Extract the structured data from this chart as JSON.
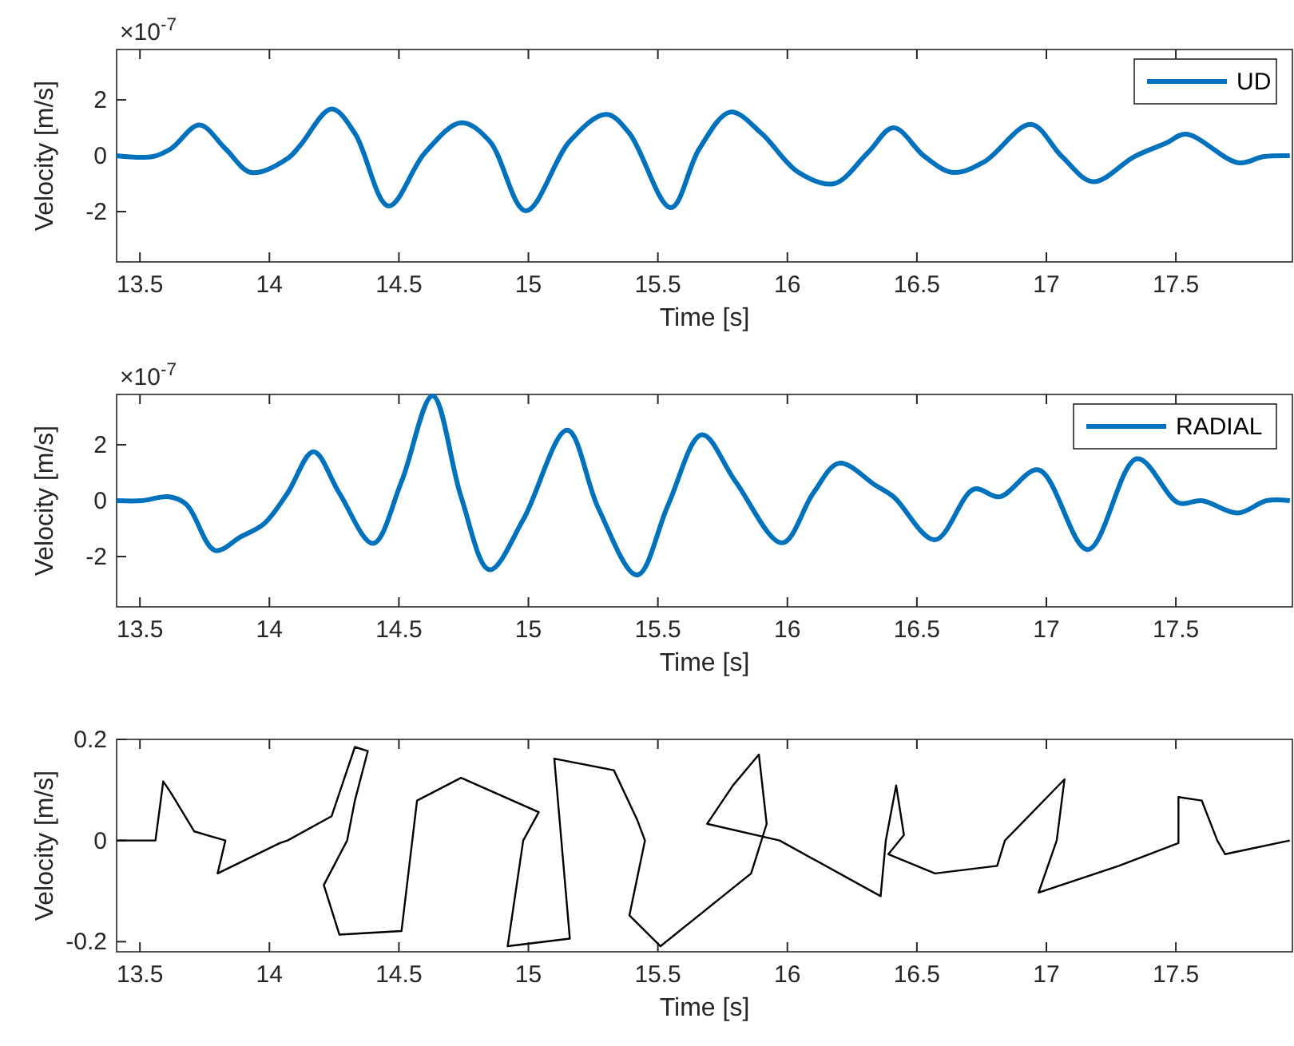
{
  "chart_data": [
    {
      "type": "line",
      "xlabel": "Time [s]",
      "ylabel": "Velocity [m/s]",
      "annotations": [
        "×10$^{-7}$"
      ],
      "legend": "top right",
      "xlim": [
        13.41,
        17.95
      ],
      "ylim": [
        -3.8,
        3.8
      ],
      "xticks": [
        13.5,
        14,
        14.5,
        15,
        15.5,
        16,
        16.5,
        17,
        17.5
      ],
      "yticks": [
        -2,
        0,
        2
      ],
      "series": [
        {
          "name": "UD",
          "color": "#0072bd",
          "x": [
            13.41,
            13.55,
            13.62,
            13.73,
            13.83,
            13.93,
            14.07,
            14.12,
            14.24,
            14.33,
            14.46,
            14.6,
            14.74,
            14.85,
            14.99,
            15.16,
            15.3,
            15.39,
            15.55,
            15.66,
            15.78,
            15.9,
            16.04,
            16.18,
            16.31,
            16.41,
            16.53,
            16.64,
            16.76,
            16.94,
            17.06,
            17.18,
            17.34,
            17.46,
            17.54,
            17.74,
            17.84,
            17.94
          ],
          "values": [
            0,
            -0.03,
            0.25,
            1.1,
            0.25,
            -0.6,
            -0.1,
            0.38,
            1.67,
            0.8,
            -1.8,
            0.1,
            1.18,
            0.52,
            -1.97,
            0.52,
            1.48,
            0.8,
            -1.86,
            0.25,
            1.56,
            0.8,
            -0.58,
            -1.0,
            0.1,
            1.0,
            -0.03,
            -0.6,
            -0.22,
            1.12,
            -0.03,
            -0.93,
            -0.03,
            0.44,
            0.77,
            -0.25,
            -0.03,
            0
          ]
        }
      ]
    },
    {
      "type": "line",
      "xlabel": "Time [s]",
      "ylabel": "Velocity [m/s]",
      "annotations": [
        "×10$^{-7}$"
      ],
      "legend": "top right",
      "xlim": [
        13.41,
        17.95
      ],
      "ylim": [
        -3.8,
        3.8
      ],
      "xticks": [
        13.5,
        14,
        14.5,
        15,
        15.5,
        16,
        16.5,
        17,
        17.5
      ],
      "yticks": [
        -2,
        0,
        2
      ],
      "series": [
        {
          "name": "RADIAL",
          "color": "#0072bd",
          "x": [
            13.41,
            13.51,
            13.61,
            13.68,
            13.79,
            13.89,
            13.98,
            14.07,
            14.17,
            14.27,
            14.4,
            14.51,
            14.63,
            14.74,
            14.85,
            14.98,
            15.15,
            15.27,
            15.42,
            15.54,
            15.67,
            15.8,
            15.98,
            16.1,
            16.2,
            16.34,
            16.41,
            16.57,
            16.72,
            16.82,
            16.97,
            17.16,
            17.35,
            17.51,
            17.6,
            17.74,
            17.85,
            17.94
          ],
          "values": [
            0,
            0,
            0.14,
            -0.14,
            -1.78,
            -1.29,
            -0.82,
            0.27,
            1.75,
            0.27,
            -1.53,
            0.68,
            3.75,
            0.14,
            -2.47,
            -0.68,
            2.52,
            -0.27,
            -2.66,
            -0.14,
            2.36,
            0.68,
            -1.51,
            0.27,
            1.34,
            0.55,
            0.14,
            -1.4,
            0.41,
            0.14,
            1.1,
            -1.75,
            1.5,
            -0.08,
            0,
            -0.44,
            0,
            0
          ]
        }
      ]
    },
    {
      "type": "line",
      "xlabel": "Time [s]",
      "ylabel": "Velocity [m/s]",
      "xlim": [
        13.41,
        17.95
      ],
      "ylim": [
        -0.22,
        0.2
      ],
      "xticks": [
        13.5,
        14,
        14.5,
        15,
        15.5,
        16,
        16.5,
        17,
        17.5
      ],
      "yticks": [
        -0.2,
        0,
        0.2
      ],
      "series": [
        {
          "color": "#000000",
          "x": [
            13.41,
            13.56,
            13.59,
            13.62,
            13.71,
            13.83,
            13.8,
            13.92,
            14.04,
            14.07,
            14.24,
            14.33,
            14.38,
            14.33,
            14.3,
            14.21,
            14.27,
            14.51,
            14.57,
            14.74,
            15.04,
            14.98,
            14.92,
            15.16,
            15.1,
            15.33,
            15.42,
            15.45,
            15.39,
            15.51,
            15.86,
            15.92,
            15.89,
            15.79,
            15.69,
            15.97,
            16.36,
            16.38,
            16.42,
            16.45,
            16.39,
            16.57,
            16.81,
            16.84,
            17.07,
            17.04,
            16.97,
            17.28,
            17.51,
            17.51,
            17.6,
            17.66,
            17.69,
            17.94
          ],
          "values": [
            0,
            0,
            0.117,
            0.094,
            0.018,
            0,
            -0.065,
            -0.035,
            -0.005,
            0,
            0.048,
            0.185,
            0.177,
            0.079,
            0,
            -0.088,
            -0.186,
            -0.179,
            0.079,
            0.124,
            0.056,
            0,
            -0.209,
            -0.194,
            0.162,
            0.139,
            0.041,
            0,
            -0.148,
            -0.209,
            -0.065,
            0.033,
            0.17,
            0.109,
            0.033,
            0,
            -0.11,
            0,
            0.109,
            0.011,
            -0.027,
            -0.065,
            -0.05,
            0,
            0.121,
            0,
            -0.103,
            -0.05,
            -0.005,
            0.086,
            0.079,
            0,
            -0.027,
            0
          ]
        }
      ]
    }
  ]
}
